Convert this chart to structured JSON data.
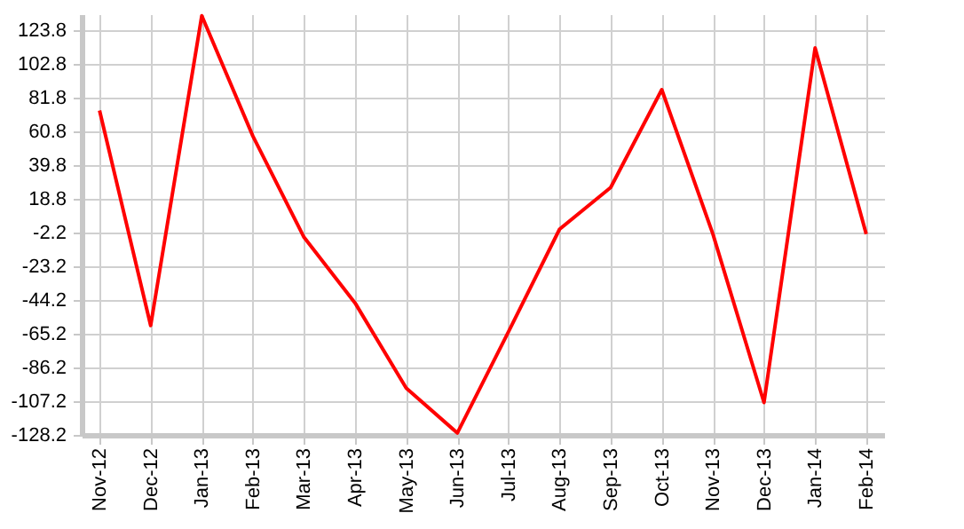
{
  "chart_data": {
    "type": "line",
    "categories": [
      "Nov-12",
      "Dec-12",
      "Jan-13",
      "Feb-13",
      "Mar-13",
      "Apr-13",
      "May-13",
      "Jun-13",
      "Jul-13",
      "Aug-13",
      "Sep-13",
      "Oct-13",
      "Nov-13",
      "Dec-13",
      "Jan-14",
      "Feb-14"
    ],
    "series": [
      {
        "color": "#ff0000",
        "values": [
          74,
          -60,
          133,
          58,
          -5,
          -46,
          -99,
          -127,
          -64,
          0,
          26,
          87,
          -3,
          -108,
          113,
          -3
        ]
      }
    ],
    "ylim": [
      -128.2,
      134
    ],
    "yticks": [
      -128.2,
      -107.2,
      -86.2,
      -65.2,
      -44.2,
      -23.2,
      -2.2,
      18.8,
      39.8,
      60.8,
      81.8,
      102.8,
      123.8
    ],
    "grid": true,
    "marker": "none",
    "line_style": "solid"
  }
}
